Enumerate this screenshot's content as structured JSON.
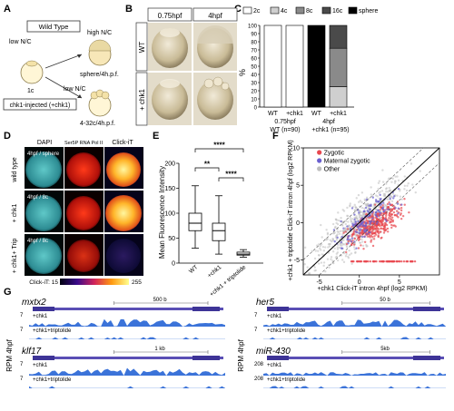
{
  "panel_letters": [
    "A",
    "B",
    "C",
    "D",
    "E",
    "F",
    "G"
  ],
  "panelA": {
    "wild_type": "Wild Type",
    "low_nc": "low N/C",
    "high_nc": "high N/C",
    "sphere": "sphere/4h.p.f.",
    "low_nc2": "low N/C",
    "one_c": "1c",
    "chk1_injected": "chk1-injected (+chk1)",
    "stage_432c": "4-32c/4h.p.f."
  },
  "panelB": {
    "col1": "0.75hpf",
    "col2": "4hpf",
    "row1": "WT",
    "row2": "+ chk1"
  },
  "panelD": {
    "cols": [
      "DAPI",
      "Ser5P RNA Pol II",
      "Click-iT"
    ],
    "row_labels": [
      "wild type",
      "+ chk1",
      "+ chk1+ Trip"
    ],
    "row_stage": [
      "4hpf / sphere",
      "4hpf / 8c",
      "4hpf / 8c"
    ],
    "scale_label": "Click-iT: 15",
    "scale_max": "255"
  },
  "panelG": {
    "ylabel_left": "RPM 4hpf",
    "ylabel_right": "RPM 4hpf",
    "tracks": [
      {
        "gene": "mxtx2",
        "scale": "500 b",
        "t1": "+chk1",
        "t2": "+chk1+triptolide",
        "ymax1": "7",
        "ymax2": "7"
      },
      {
        "gene": "klf17",
        "scale": "1 kb",
        "t1": "+chk1",
        "t2": "+chk1+triptolide",
        "ymax1": "7",
        "ymax2": "7"
      },
      {
        "gene": "her5",
        "scale": "50 b",
        "t1": "+chk1",
        "t2": "+chk1+triptolide",
        "ymax1": "7",
        "ymax2": "7"
      },
      {
        "gene": "miR-430",
        "scale": "5kb",
        "t1": "+chk1",
        "t2": "+chk1+triptolide",
        "ymax1": "208",
        "ymax2": "208"
      }
    ]
  },
  "chart_data": [
    {
      "panel": "C",
      "type": "bar",
      "stacked": true,
      "ylabel": "%",
      "ylim": [
        0,
        100
      ],
      "yticks": [
        0,
        10,
        20,
        30,
        40,
        50,
        60,
        70,
        80,
        90,
        100
      ],
      "categories": [
        "WT",
        "+chk1",
        "WT",
        "+chk1"
      ],
      "group_labels": [
        "0.75hpf",
        "4hpf"
      ],
      "n_labels": [
        "WT (n=90)",
        "+chk1 (n=95)"
      ],
      "legend": [
        "2c",
        "4c",
        "8c",
        "16c",
        "sphere"
      ],
      "series": [
        {
          "name": "2c",
          "color": "#ffffff",
          "values": [
            100,
            100,
            0,
            0
          ]
        },
        {
          "name": "4c",
          "color": "#cfcfcf",
          "values": [
            0,
            0,
            0,
            25
          ]
        },
        {
          "name": "8c",
          "color": "#8a8a8a",
          "values": [
            0,
            0,
            0,
            47
          ]
        },
        {
          "name": "16c",
          "color": "#4a4a4a",
          "values": [
            0,
            0,
            0,
            28
          ]
        },
        {
          "name": "sphere",
          "color": "#000000",
          "values": [
            0,
            0,
            100,
            0
          ]
        }
      ]
    },
    {
      "panel": "E",
      "type": "box",
      "ylabel": "Mean Fluorescence Intensity",
      "ylim": [
        0,
        200
      ],
      "yticks": [
        0,
        50,
        100,
        150,
        200
      ],
      "categories": [
        "WT",
        "+chk1",
        "+chk1 + triptolide"
      ],
      "boxes": [
        {
          "min": 30,
          "q1": 65,
          "median": 80,
          "q3": 100,
          "max": 155
        },
        {
          "min": 18,
          "q1": 45,
          "median": 65,
          "q3": 80,
          "max": 135
        },
        {
          "min": 12,
          "q1": 16,
          "median": 18,
          "q3": 22,
          "max": 27
        }
      ],
      "significance": [
        {
          "from": 0,
          "to": 2,
          "label": "****"
        },
        {
          "from": 0,
          "to": 1,
          "label": "**"
        },
        {
          "from": 1,
          "to": 2,
          "label": "****"
        }
      ]
    },
    {
      "panel": "F",
      "type": "scatter",
      "xlabel": "+chk1 Click-iT intron 4hpf (log2 RPKM)",
      "ylabel": "+chk1 + triptolide Click-iT intron 4hpf (log2 RPKM)",
      "xlim": [
        -7,
        10
      ],
      "ylim": [
        -7,
        10
      ],
      "xticks": [
        -5,
        0,
        5
      ],
      "yticks": [
        -5,
        0,
        5,
        10
      ],
      "legend": [
        {
          "name": "Zygotic",
          "color": "#e8474f"
        },
        {
          "name": "Maternal zygotic",
          "color": "#6a5fd0"
        },
        {
          "name": "Other",
          "color": "#bdbdbd"
        }
      ]
    }
  ]
}
